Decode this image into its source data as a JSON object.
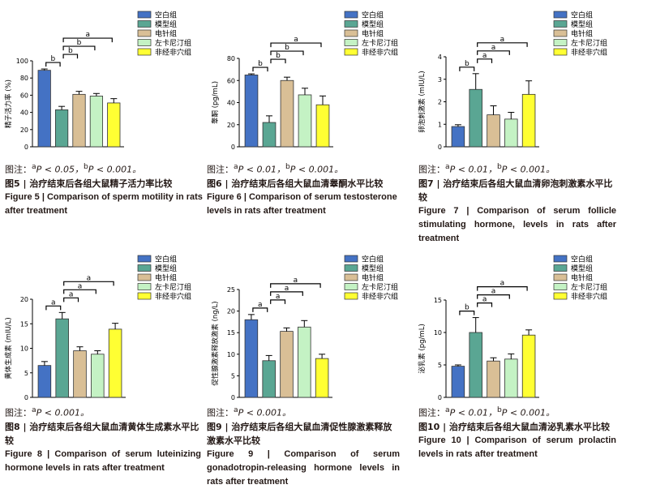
{
  "legend_labels": [
    "空白组",
    "模型组",
    "电针组",
    "左卡尼汀组",
    "非经非穴组"
  ],
  "group_colors": [
    "#4472c4",
    "#5aa693",
    "#d9bf96",
    "#c4f2c4",
    "#ffff33"
  ],
  "chart_data": [
    {
      "type": "bar",
      "ylabel": "精子活力率 (%)",
      "categories": [
        "空白组",
        "模型组",
        "电针组",
        "左卡尼汀组",
        "非经非穴组"
      ],
      "values": [
        89,
        43,
        61,
        59,
        51
      ],
      "errors": [
        1.5,
        4,
        3.5,
        3,
        5
      ],
      "ylim": [
        0,
        100
      ],
      "yticks": [
        "0",
        "20",
        "40",
        "60",
        "80",
        "100"
      ],
      "significance": [
        {
          "from": 0,
          "to": 1,
          "label": "b"
        },
        {
          "from": 1,
          "to": 2,
          "label": "b"
        },
        {
          "from": 1,
          "to": 3,
          "label": "b"
        },
        {
          "from": 1,
          "to": 4,
          "label": "a"
        }
      ],
      "note": {
        "prefix": "图注：",
        "sup1": "a",
        "text1": "P < 0.05，",
        "sup2": "b",
        "text2": "P < 0.001。"
      },
      "title_zh": "图5 | 治疗结束后各组大鼠精子活力率比较",
      "title_en": "Figure 5 | Comparison of sperm motility in rats after treatment"
    },
    {
      "type": "bar",
      "ylabel": "睾酮 (pg/mL)",
      "categories": [
        "空白组",
        "模型组",
        "电针组",
        "左卡尼汀组",
        "非经非穴组"
      ],
      "values": [
        65,
        22,
        60,
        47,
        38
      ],
      "errors": [
        1,
        6,
        3,
        6,
        8
      ],
      "ylim": [
        0,
        80
      ],
      "yticks": [
        "0",
        "20",
        "40",
        "60",
        "80"
      ],
      "significance": [
        {
          "from": 0,
          "to": 1,
          "label": "b"
        },
        {
          "from": 1,
          "to": 2,
          "label": "b"
        },
        {
          "from": 1,
          "to": 3,
          "label": "b"
        },
        {
          "from": 1,
          "to": 4,
          "label": "a"
        }
      ],
      "note": {
        "prefix": "图注：",
        "sup1": "a",
        "text1": "P < 0.01，",
        "sup2": "b",
        "text2": "P < 0.001。"
      },
      "title_zh": "图6 | 治疗结束后各组大鼠血清睾酮水平比较",
      "title_en": "Figure 6 | Comparison of serum testosterone levels in rats after treatment"
    },
    {
      "type": "bar",
      "ylabel": "卵泡刺激素 (mIU/L)",
      "categories": [
        "空白组",
        "模型组",
        "电针组",
        "左卡尼汀组",
        "非经非穴组"
      ],
      "values": [
        0.9,
        2.55,
        1.42,
        1.23,
        2.33
      ],
      "errors": [
        0.08,
        0.7,
        0.4,
        0.3,
        0.6
      ],
      "ylim": [
        0,
        4
      ],
      "yticks": [
        "0",
        "1",
        "2",
        "3",
        "4"
      ],
      "significance": [
        {
          "from": 0,
          "to": 1,
          "label": "b"
        },
        {
          "from": 1,
          "to": 2,
          "label": "a"
        },
        {
          "from": 1,
          "to": 3,
          "label": "a"
        },
        {
          "from": 1,
          "to": 4,
          "label": "a"
        }
      ],
      "note": {
        "prefix": "图注：",
        "sup1": "a",
        "text1": "P < 0.01，",
        "sup2": "b",
        "text2": "P < 0.001。"
      },
      "title_zh": "图7 | 治疗结束后各组大鼠血清卵泡刺激素水平比较",
      "title_en": "Figure 7 | Comparison of serum follicle stimulating hormone, levels in rats after treatment"
    },
    {
      "type": "bar",
      "ylabel": "黄体生成素 (mIU/L)",
      "categories": [
        "空白组",
        "模型组",
        "电针组",
        "左卡尼汀组",
        "非经非穴组"
      ],
      "values": [
        6.5,
        16,
        9.5,
        8.8,
        13.9
      ],
      "errors": [
        0.8,
        1.3,
        0.8,
        0.7,
        1.2
      ],
      "ylim": [
        0,
        20
      ],
      "yticks": [
        "0",
        "5",
        "10",
        "15",
        "20"
      ],
      "significance": [
        {
          "from": 0,
          "to": 1,
          "label": "a"
        },
        {
          "from": 1,
          "to": 2,
          "label": "a"
        },
        {
          "from": 1,
          "to": 3,
          "label": "a"
        },
        {
          "from": 1,
          "to": 4,
          "label": "a"
        }
      ],
      "note": {
        "prefix": "图注：",
        "sup1": "a",
        "text1": "P < 0.001。",
        "sup2": "",
        "text2": ""
      },
      "title_zh": "图8 | 治疗结束后各组大鼠血清黄体生成素水平比较",
      "title_en": "Figure 8 | Comparison of serum luteinizing hormone levels in rats after treatment"
    },
    {
      "type": "bar",
      "ylabel": "促性腺激素释放激素 (ng/L)",
      "categories": [
        "空白组",
        "模型组",
        "电针组",
        "左卡尼汀组",
        "非经非穴组"
      ],
      "values": [
        18,
        8.5,
        15.3,
        16.3,
        9
      ],
      "errors": [
        1.2,
        1.2,
        0.8,
        1.5,
        1
      ],
      "ylim": [
        0,
        25
      ],
      "yticks": [
        "0",
        "5",
        "10",
        "15",
        "20",
        "25"
      ],
      "significance": [
        {
          "from": 0,
          "to": 1,
          "label": "a"
        },
        {
          "from": 1,
          "to": 2,
          "label": "a"
        },
        {
          "from": 1,
          "to": 3,
          "label": "a"
        },
        {
          "from": 1,
          "to": 4,
          "label": "a"
        }
      ],
      "note": {
        "prefix": "图注：",
        "sup1": "a",
        "text1": "P < 0.001。",
        "sup2": "",
        "text2": ""
      },
      "title_zh": "图9 | 治疗结束后各组大鼠血清促性腺激素释放激素水平比较",
      "title_en": "Figure 9 | Comparison of serum gonadotropin-releasing hormone levels in rats after treatment"
    },
    {
      "type": "bar",
      "ylabel": "泌乳素 (pg/mL)",
      "categories": [
        "空白组",
        "模型组",
        "电针组",
        "左卡尼汀组",
        "非经非穴组"
      ],
      "values": [
        4.8,
        10,
        5.6,
        5.9,
        9.6
      ],
      "errors": [
        0.2,
        2.3,
        0.5,
        0.8,
        0.8
      ],
      "ylim": [
        0,
        15
      ],
      "yticks": [
        "0",
        "5",
        "10",
        "15"
      ],
      "significance": [
        {
          "from": 0,
          "to": 1,
          "label": "b"
        },
        {
          "from": 1,
          "to": 2,
          "label": "a"
        },
        {
          "from": 1,
          "to": 3,
          "label": "a"
        },
        {
          "from": 1,
          "to": 4,
          "label": "a"
        }
      ],
      "note": {
        "prefix": "图注：",
        "sup1": "a",
        "text1": "P < 0.01，",
        "sup2": "b",
        "text2": "P < 0.001。"
      },
      "title_zh": "图10 | 治疗结束后各组大鼠血清泌乳素水平比较",
      "title_en": "Figure 10 | Comparison of serum prolactin levels in rats after treatment"
    }
  ]
}
